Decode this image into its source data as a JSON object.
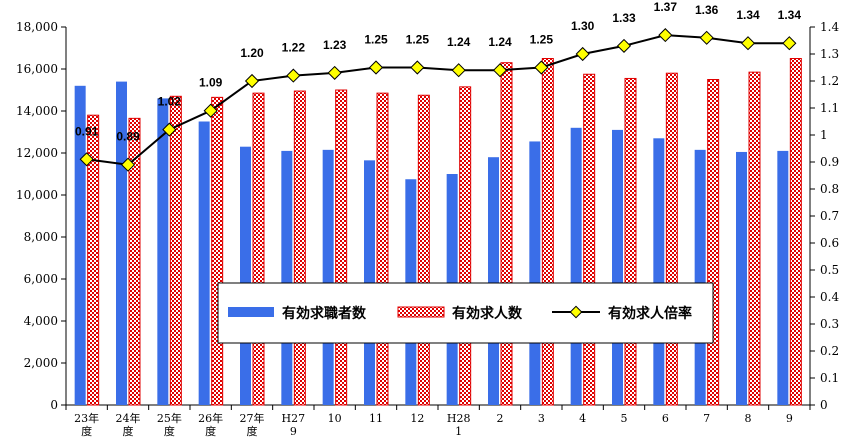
{
  "chart_data": {
    "type": "bar",
    "categories": [
      [
        "23年",
        "度"
      ],
      [
        "24年",
        "度"
      ],
      [
        "25年",
        "度"
      ],
      [
        "26年",
        "度"
      ],
      [
        "27年",
        "度"
      ],
      [
        "H27",
        "9"
      ],
      [
        "10"
      ],
      [
        "11"
      ],
      [
        "12"
      ],
      [
        "H28",
        "1"
      ],
      [
        "2"
      ],
      [
        "3"
      ],
      [
        "4"
      ],
      [
        "5"
      ],
      [
        "6"
      ],
      [
        "7"
      ],
      [
        "8"
      ],
      [
        "9"
      ]
    ],
    "series": [
      {
        "name": "有効求職者数",
        "type": "bar",
        "axis": "left",
        "color": "#3a6ee8",
        "values": [
          15200,
          15400,
          14600,
          13500,
          12300,
          12100,
          12150,
          11650,
          10750,
          11000,
          11800,
          12550,
          13200,
          13100,
          12700,
          12150,
          12050,
          12100
        ]
      },
      {
        "name": "有効求人数",
        "type": "bar",
        "axis": "left",
        "color": "#e00000",
        "pattern": "checker",
        "values": [
          13800,
          13650,
          14700,
          14650,
          14850,
          14950,
          15000,
          14850,
          14750,
          15150,
          16300,
          16500,
          15750,
          15550,
          15800,
          15500,
          15850,
          16500
        ]
      },
      {
        "name": "有効求人倍率",
        "type": "line",
        "axis": "right",
        "color": "#000000",
        "marker_color": "#ffff00",
        "values": [
          0.91,
          0.89,
          1.02,
          1.09,
          1.2,
          1.22,
          1.23,
          1.25,
          1.25,
          1.24,
          1.24,
          1.25,
          1.3,
          1.33,
          1.37,
          1.36,
          1.34,
          1.34
        ],
        "labels": [
          "0.91",
          "0.89",
          "1.02",
          "1.09",
          "1.20",
          "1.22",
          "1.23",
          "1.25",
          "1.25",
          "1.24",
          "1.24",
          "1.25",
          "1.30",
          "1.33",
          "1.37",
          "1.36",
          "1.34",
          "1.34"
        ]
      }
    ],
    "left_axis": {
      "min": 0,
      "max": 18000,
      "ticks": [
        0,
        2000,
        4000,
        6000,
        8000,
        10000,
        12000,
        14000,
        16000,
        18000
      ],
      "tick_labels": [
        "0",
        "2,000",
        "4,000",
        "6,000",
        "8,000",
        "10,000",
        "12,000",
        "14,000",
        "16,000",
        "18,000"
      ]
    },
    "right_axis": {
      "min": 0,
      "max": 1.4,
      "ticks": [
        0,
        0.1,
        0.2,
        0.3,
        0.4,
        0.5,
        0.6,
        0.7,
        0.8,
        0.9,
        1.0,
        1.1,
        1.2,
        1.3,
        1.4
      ],
      "tick_labels": [
        "0",
        "0.1",
        "0.2",
        "0.3",
        "0.4",
        "0.5",
        "0.6",
        "0.7",
        "0.8",
        "0.9",
        "1",
        "1.1",
        "1.2",
        "1.3",
        "1.4"
      ]
    },
    "grid": false,
    "legend": {
      "placement": "center-bottom",
      "items": [
        "有効求職者数",
        "有効求人数",
        "有効求人倍率"
      ]
    },
    "title": "",
    "xlabel": "",
    "ylabel": ""
  }
}
